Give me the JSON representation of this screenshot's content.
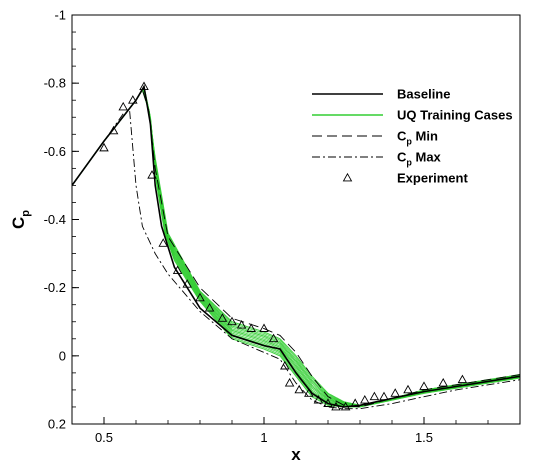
{
  "chart_data": {
    "type": "line",
    "title": "",
    "xlabel": "x",
    "ylabel": "C",
    "ylabel_subscript": "p",
    "xlim": [
      0.4,
      1.8
    ],
    "ylim": [
      0.2,
      -1.0
    ],
    "y_inverted": true,
    "grid": false,
    "legend_position": "top-right",
    "xticks": [
      0.5,
      1.0,
      1.5
    ],
    "xtick_labels": [
      "0.5",
      "1",
      "1.5"
    ],
    "yticks": [
      -1.0,
      -0.8,
      -0.6,
      -0.4,
      -0.2,
      0.0,
      0.2
    ],
    "ytick_labels": [
      "-1",
      "-0.8",
      "-0.6",
      "-0.4",
      "-0.2",
      "0",
      "0.2"
    ],
    "legend": [
      {
        "label": "Baseline",
        "sub": "",
        "suffix": "",
        "style": "solid",
        "color": "#000000"
      },
      {
        "label": "UQ Training Cases",
        "sub": "",
        "suffix": "",
        "style": "solid",
        "color": "#32cd32"
      },
      {
        "label": "C",
        "sub": "p",
        "suffix": " Min",
        "style": "dashed",
        "color": "#000000"
      },
      {
        "label": "C",
        "sub": "p",
        "suffix": " Max",
        "style": "dashdot",
        "color": "#000000"
      },
      {
        "label": "Experiment",
        "sub": "",
        "suffix": "",
        "style": "triangle",
        "color": "#000000"
      }
    ],
    "series": [
      {
        "name": "Baseline",
        "style": "solid",
        "color": "#000000",
        "x": [
          0.4,
          0.5,
          0.6,
          0.625,
          0.645,
          0.66,
          0.68,
          0.72,
          0.8,
          0.9,
          1.0,
          1.05,
          1.1,
          1.15,
          1.2,
          1.25,
          1.3,
          1.4,
          1.5,
          1.6,
          1.7,
          1.8
        ],
        "y": [
          -0.5,
          -0.63,
          -0.75,
          -0.79,
          -0.68,
          -0.5,
          -0.38,
          -0.26,
          -0.14,
          -0.06,
          -0.03,
          -0.02,
          0.05,
          0.11,
          0.14,
          0.15,
          0.145,
          0.125,
          0.105,
          0.09,
          0.075,
          0.06
        ]
      },
      {
        "name": "Cp Min",
        "style": "dashed",
        "color": "#000000",
        "x": [
          0.4,
          0.5,
          0.6,
          0.62,
          0.64,
          0.66,
          0.7,
          0.8,
          0.9,
          1.0,
          1.05,
          1.1,
          1.15,
          1.2,
          1.25,
          1.3,
          1.4,
          1.5,
          1.6,
          1.7,
          1.8
        ],
        "y": [
          -0.5,
          -0.63,
          -0.75,
          -0.78,
          -0.72,
          -0.55,
          -0.35,
          -0.2,
          -0.11,
          -0.08,
          -0.06,
          -0.01,
          0.06,
          0.12,
          0.145,
          0.15,
          0.125,
          0.1,
          0.085,
          0.07,
          0.055
        ]
      },
      {
        "name": "Cp Max",
        "style": "dashdot",
        "color": "#000000",
        "x": [
          0.4,
          0.5,
          0.56,
          0.58,
          0.6,
          0.62,
          0.66,
          0.7,
          0.8,
          0.9,
          1.0,
          1.05,
          1.1,
          1.15,
          1.2,
          1.25,
          1.3,
          1.4,
          1.5,
          1.6,
          1.7,
          1.8
        ],
        "y": [
          -0.5,
          -0.63,
          -0.71,
          -0.72,
          -0.5,
          -0.38,
          -0.3,
          -0.24,
          -0.13,
          -0.05,
          -0.01,
          0.01,
          0.08,
          0.13,
          0.15,
          0.155,
          0.155,
          0.14,
          0.12,
          0.1,
          0.085,
          0.07
        ]
      }
    ],
    "uq_band": {
      "name": "UQ Training Cases",
      "color": "#32cd32",
      "count": 13,
      "lower": {
        "x": [
          0.4,
          0.5,
          0.6,
          0.62,
          0.64,
          0.66,
          0.7,
          0.8,
          0.9,
          1.0,
          1.05,
          1.1,
          1.15,
          1.2,
          1.25,
          1.3,
          1.4,
          1.5,
          1.6,
          1.7,
          1.8
        ],
        "y": [
          -0.5,
          -0.63,
          -0.75,
          -0.78,
          -0.72,
          -0.58,
          -0.36,
          -0.19,
          -0.1,
          -0.07,
          -0.05,
          0.0,
          0.06,
          0.11,
          0.135,
          0.145,
          0.125,
          0.1,
          0.085,
          0.07,
          0.055
        ]
      },
      "upper": {
        "x": [
          0.4,
          0.5,
          0.6,
          0.625,
          0.645,
          0.665,
          0.69,
          0.72,
          0.8,
          0.9,
          1.0,
          1.05,
          1.1,
          1.15,
          1.2,
          1.25,
          1.3,
          1.4,
          1.5,
          1.6,
          1.7,
          1.8
        ],
        "y": [
          -0.5,
          -0.63,
          -0.75,
          -0.79,
          -0.7,
          -0.5,
          -0.36,
          -0.28,
          -0.16,
          -0.05,
          -0.02,
          0.0,
          0.06,
          0.12,
          0.145,
          0.15,
          0.15,
          0.13,
          0.11,
          0.095,
          0.08,
          0.065
        ]
      }
    },
    "experiment": {
      "name": "Experiment",
      "x": [
        0.5,
        0.53,
        0.56,
        0.59,
        0.625,
        0.65,
        0.685,
        0.73,
        0.76,
        0.8,
        0.83,
        0.87,
        0.9,
        0.93,
        0.96,
        1.0,
        1.03,
        1.065,
        1.08,
        1.11,
        1.14,
        1.17,
        1.2,
        1.225,
        1.255,
        1.285,
        1.315,
        1.345,
        1.375,
        1.41,
        1.45,
        1.5,
        1.56,
        1.62
      ],
      "y": [
        -0.61,
        -0.66,
        -0.73,
        -0.75,
        -0.79,
        -0.53,
        -0.33,
        -0.25,
        -0.21,
        -0.17,
        -0.14,
        -0.11,
        -0.1,
        -0.09,
        -0.08,
        -0.08,
        -0.05,
        0.03,
        0.08,
        0.1,
        0.11,
        0.13,
        0.14,
        0.15,
        0.15,
        0.14,
        0.13,
        0.12,
        0.12,
        0.11,
        0.1,
        0.09,
        0.08,
        0.07
      ]
    }
  }
}
